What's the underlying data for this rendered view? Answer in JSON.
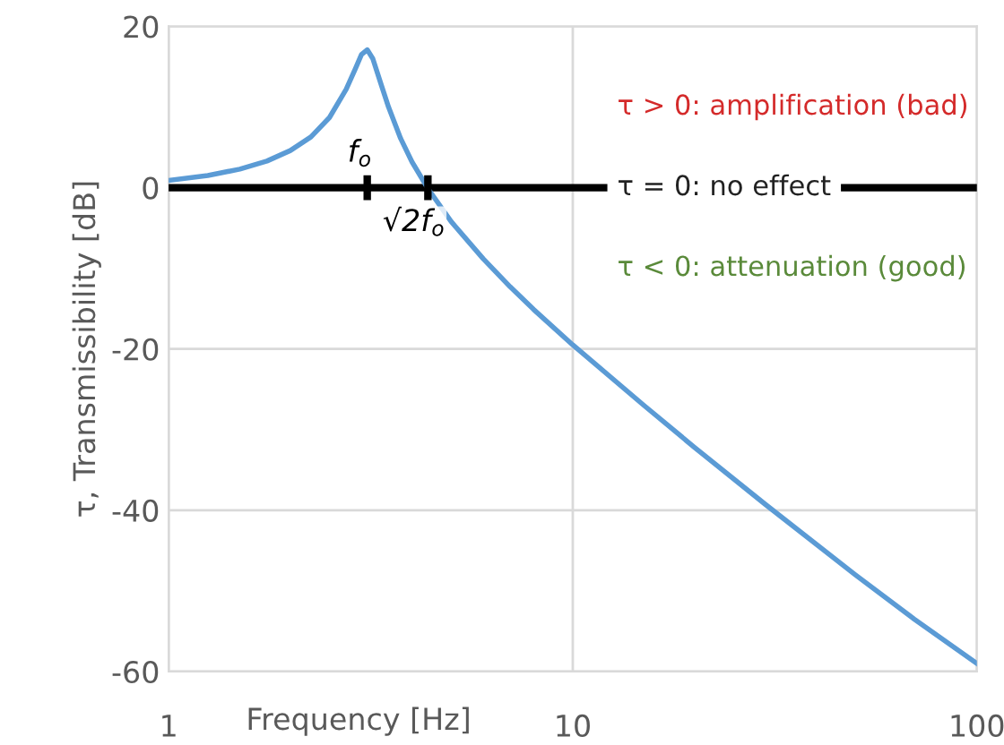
{
  "chart_data": {
    "type": "line",
    "xlabel": "Frequency [Hz]",
    "ylabel": "τ, Transmissibility [dB]",
    "log": "x",
    "xlim": [
      1,
      100
    ],
    "xticks": [
      1,
      10,
      100
    ],
    "ylim": [
      -60,
      20
    ],
    "yticks": [
      -60,
      -40,
      -20,
      0,
      20
    ],
    "grid": true,
    "series": [
      {
        "color": "#5b9bd5",
        "x": [
          1,
          1.25,
          1.5,
          1.75,
          2,
          2.25,
          2.5,
          2.75,
          2.9,
          3.0,
          3.1,
          3.2,
          3.35,
          3.5,
          3.75,
          4,
          4.38,
          5,
          6,
          7,
          8,
          10,
          15,
          20,
          30,
          50,
          70,
          100
        ],
        "values": [
          0.9,
          1.5,
          2.3,
          3.3,
          4.6,
          6.3,
          8.7,
          12.2,
          14.8,
          16.5,
          17.1,
          16.0,
          12.9,
          10.0,
          6.1,
          3.2,
          -0.1,
          -4.2,
          -8.8,
          -12.3,
          -15.1,
          -19.5,
          -27.0,
          -32.2,
          -39.3,
          -48.0,
          -53.5,
          -59.0
        ]
      }
    ],
    "ref_lines": [
      {
        "axis": "y",
        "value": 0,
        "label": "τ = 0: no effect",
        "color": "#000000"
      }
    ],
    "annotations": [
      {
        "text": "f$_{o}$",
        "x": 3.1,
        "y": 0
      },
      {
        "text": "√2f$_{o}$",
        "x": 4.38,
        "y": 0
      },
      "τ > 0: amplification (bad)",
      "τ < 0: attenuation (good)"
    ]
  }
}
